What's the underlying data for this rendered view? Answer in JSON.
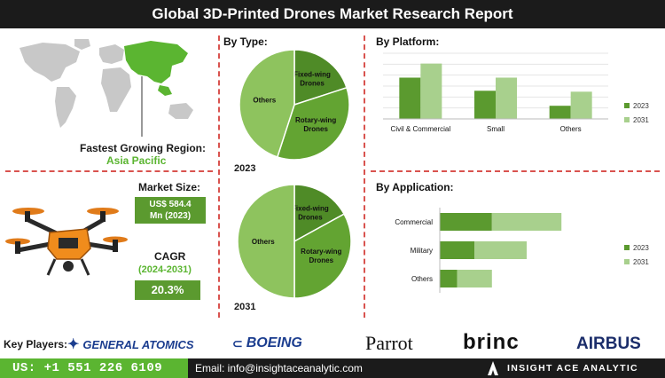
{
  "title": "Global 3D-Printed Drones Market Research Report",
  "region": {
    "label": "Fastest Growing Region:",
    "value": "Asia Pacific"
  },
  "market_size": {
    "label": "Market Size:",
    "value_line1": "US$ 584.4",
    "value_line2": "Mn (2023)"
  },
  "cagr": {
    "label": "CAGR",
    "period": "(2024-2031)",
    "value": "20.3%"
  },
  "key_players": {
    "label": "Key Players:",
    "logos": [
      "GENERAL ATOMICS",
      "BOEING",
      "Parrot",
      "brinc",
      "AIRBUS"
    ]
  },
  "footer": {
    "phone": "US: +1 551 226 6109",
    "email": "Email: info@insightaceanalytic.com",
    "brand": "INSIGHT ACE ANALYTIC"
  },
  "colors": {
    "dark_green": "#5b9a2f",
    "light_green": "#a8d08d",
    "pie_green": "#5a9a2f",
    "pie_light": "#8cbf5a",
    "header_bg": "#1b1b1b",
    "divider": "#d9534f"
  },
  "chart_data": [
    {
      "type": "pie",
      "title": "By Type:",
      "caption": "2023",
      "categories": [
        "Fixed-wing Drones",
        "Rotary-wing Drones",
        "Others"
      ],
      "values": [
        20,
        35,
        45
      ]
    },
    {
      "type": "pie",
      "caption": "2031",
      "categories": [
        "Fixed-wing Drones",
        "Rotary-wing Drones",
        "Others"
      ],
      "values": [
        17,
        33,
        50
      ]
    },
    {
      "type": "bar",
      "title": "By Platform:",
      "categories": [
        "Civil & Commercial",
        "Small",
        "Others"
      ],
      "series": [
        {
          "name": "2023",
          "values": [
            44,
            30,
            14
          ]
        },
        {
          "name": "2031",
          "values": [
            59,
            44,
            29
          ]
        }
      ],
      "ylim": [
        0,
        70
      ],
      "legend": "right",
      "grid": true
    },
    {
      "type": "bar",
      "orientation": "horizontal",
      "stacked": true,
      "title": "By Application:",
      "categories": [
        "Commercial",
        "Military",
        "Others"
      ],
      "series": [
        {
          "name": "2023",
          "values": [
            30,
            20,
            10
          ]
        },
        {
          "name": "2031",
          "values": [
            40,
            30,
            20
          ]
        }
      ],
      "xlim": [
        0,
        100
      ],
      "legend": "right"
    }
  ]
}
